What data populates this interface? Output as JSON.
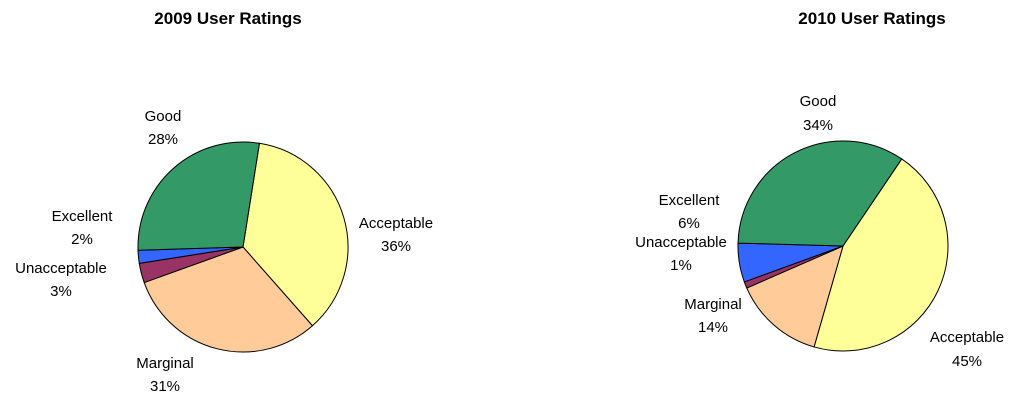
{
  "chart_data": [
    {
      "type": "pie",
      "title": "2009 User Ratings",
      "start_angle_deg": 9,
      "slices": [
        {
          "label": "Acceptable",
          "value": 36,
          "pct_label": "36%",
          "color": "#FFFF99"
        },
        {
          "label": "Marginal",
          "value": 31,
          "pct_label": "31%",
          "color": "#FFCC99"
        },
        {
          "label": "Unacceptable",
          "value": 3,
          "pct_label": "3%",
          "color": "#993366"
        },
        {
          "label": "Excellent",
          "value": 2,
          "pct_label": "2%",
          "color": "#3366FF"
        },
        {
          "label": "Good",
          "value": 28,
          "pct_label": "28%",
          "color": "#339966"
        }
      ]
    },
    {
      "type": "pie",
      "title": "2010 User Ratings",
      "start_angle_deg": 34,
      "slices": [
        {
          "label": "Acceptable",
          "value": 45,
          "pct_label": "45%",
          "color": "#FFFF99"
        },
        {
          "label": "Marginal",
          "value": 14,
          "pct_label": "14%",
          "color": "#FFCC99"
        },
        {
          "label": "Unacceptable",
          "value": 1,
          "pct_label": "1%",
          "color": "#993366"
        },
        {
          "label": "Excellent",
          "value": 6,
          "pct_label": "6%",
          "color": "#3366FF"
        },
        {
          "label": "Good",
          "value": 34,
          "pct_label": "34%",
          "color": "#339966"
        }
      ]
    }
  ]
}
